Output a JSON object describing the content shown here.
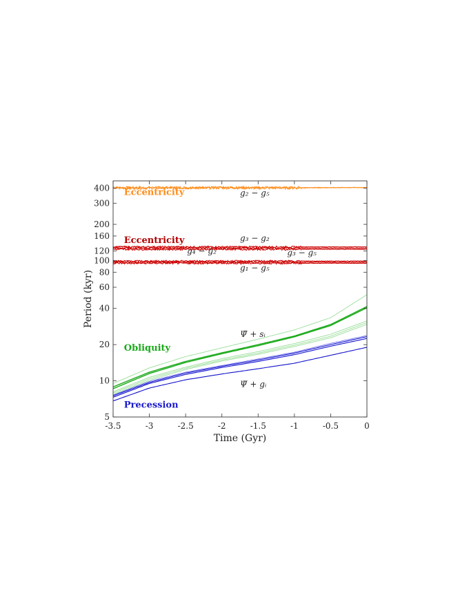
{
  "chart_data": {
    "type": "line",
    "xlabel": "Time (Gyr)",
    "ylabel": "Period (kyr)",
    "xlim": [
      -3.5,
      0
    ],
    "ylim": [
      5,
      460
    ],
    "yscale": "log",
    "x_ticks": [
      -3.5,
      -3,
      -2.5,
      -2,
      -1.5,
      -1,
      -0.5,
      0
    ],
    "x_tick_labels": [
      "-3.5",
      "-3",
      "-2.5",
      "-2",
      "-1.5",
      "-1",
      "-0.5",
      "0"
    ],
    "y_ticks": [
      5,
      10,
      20,
      40,
      60,
      80,
      100,
      120,
      160,
      200,
      300,
      400
    ],
    "y_tick_labels": [
      "5",
      "10",
      "20",
      "40",
      "60",
      "80",
      "100",
      "120",
      "160",
      "200",
      "300",
      "400"
    ],
    "grid": false,
    "colors": {
      "eccentricity_long": "#ff8c1a",
      "eccentricity_short": "#cc0000",
      "eccentricity_short_bright": "#ff2020",
      "obliquity": "#1aaa1a",
      "obliquity_light": "#99dd99",
      "precession": "#1010cc",
      "precession_light": "#6a6aee"
    },
    "band_labels": [
      {
        "text": "Eccentricity",
        "color": "#ff8c1a",
        "x": -3.35,
        "y": 370
      },
      {
        "text": "Eccentricity",
        "color": "#b00000",
        "x": -3.35,
        "y": 148
      },
      {
        "text": "Obliquity",
        "color": "#1aaa1a",
        "x": -3.35,
        "y": 18.8
      },
      {
        "text": "Precession",
        "color": "#1a1acc",
        "x": -3.35,
        "y": 6.3
      }
    ],
    "term_labels": [
      {
        "text": "g₂ − g₅",
        "x": -1.75,
        "y": 365
      },
      {
        "text": "g₃ − g₂",
        "x": -1.75,
        "y": 154
      },
      {
        "text": "g₄ − g₂",
        "x": -2.48,
        "y": 120
      },
      {
        "text": "g₃ − g₅",
        "x": -1.1,
        "y": 116
      },
      {
        "text": "g₁ − g₅",
        "x": -1.75,
        "y": 87
      },
      {
        "text": "Ψ̄ + sᵢ",
        "x": -1.75,
        "y": 24.5
      },
      {
        "text": "Ψ̄ + gᵢ",
        "x": -1.75,
        "y": 9.4
      }
    ],
    "series": [
      {
        "group": "eccentricity_long",
        "x": [
          -3.5,
          -3,
          -2.5,
          -2,
          -1.5,
          -1,
          -0.5,
          0
        ],
        "y": [
          405,
          405,
          405,
          405,
          405,
          405,
          405,
          405
        ],
        "noise": 8
      },
      {
        "group": "eccentricity_long",
        "x": [
          -3.5,
          -3,
          -2.5,
          -2,
          -1.5,
          -1,
          -0.5,
          0
        ],
        "y": [
          402,
          401,
          402,
          403,
          402,
          402,
          404,
          405
        ],
        "noise": 10
      },
      {
        "group": "eccentricity_short",
        "x": [
          -3.5,
          -3,
          -2.5,
          -2,
          -1.5,
          -1,
          -0.5,
          0
        ],
        "y": [
          130,
          130,
          130,
          130,
          130,
          130,
          130,
          130
        ],
        "noise": 2
      },
      {
        "group": "eccentricity_short",
        "x": [
          -3.5,
          -3,
          -2.5,
          -2,
          -1.5,
          -1,
          -0.5,
          0
        ],
        "y": [
          127,
          127,
          127,
          127,
          127,
          127,
          127,
          127
        ],
        "noise": 2
      },
      {
        "group": "eccentricity_short",
        "x": [
          -3.5,
          -3,
          -2.5,
          -2,
          -1.5,
          -1,
          -0.5,
          0
        ],
        "y": [
          124,
          124,
          124,
          124,
          124,
          124,
          124,
          124
        ],
        "noise": 2
      },
      {
        "group": "eccentricity_short",
        "x": [
          -3.5,
          -3,
          -2.5,
          -2,
          -1.5,
          -1,
          -0.5,
          0
        ],
        "y": [
          97,
          97,
          97,
          97,
          97,
          97,
          97,
          97
        ],
        "noise": 1.5
      },
      {
        "group": "eccentricity_short",
        "x": [
          -3.5,
          -3,
          -2.5,
          -2,
          -1.5,
          -1,
          -0.5,
          0
        ],
        "y": [
          95,
          95,
          95,
          95,
          95,
          95,
          95,
          95
        ],
        "noise": 1.5
      },
      {
        "group": "eccentricity_short",
        "x": [
          -3.5,
          -3,
          -2.5,
          -2,
          -1.5,
          -1,
          -0.5,
          0
        ],
        "y": [
          99,
          99,
          99,
          99,
          99,
          99,
          99,
          99
        ],
        "noise": 1.5
      },
      {
        "group": "obliquity",
        "x": [
          -3.5,
          -3,
          -2.5,
          -2,
          -1.5,
          -1,
          -0.5,
          0
        ],
        "y": [
          8.6,
          11.5,
          14.2,
          16.8,
          19.6,
          23.2,
          28.8,
          40.5
        ],
        "noise": 0
      },
      {
        "group": "obliquity",
        "x": [
          -3.5,
          -3,
          -2.5,
          -2,
          -1.5,
          -1,
          -0.5,
          0
        ],
        "y": [
          8.9,
          11.8,
          14.5,
          17.1,
          20.0,
          23.6,
          29.4,
          41.5
        ],
        "noise": 0
      },
      {
        "group": "obliquity_light",
        "x": [
          -3.5,
          -3,
          -2.5,
          -2,
          -1.5,
          -1,
          -0.5,
          0
        ],
        "y": [
          9.5,
          12.8,
          15.9,
          18.8,
          22.2,
          26.5,
          33.5,
          52
        ],
        "noise": 0
      },
      {
        "group": "obliquity_light",
        "x": [
          -3.5,
          -3,
          -2.5,
          -2,
          -1.5,
          -1,
          -0.5,
          0
        ],
        "y": [
          7.9,
          10.4,
          12.7,
          14.9,
          17.0,
          19.8,
          23.5,
          30.5
        ],
        "noise": 0
      },
      {
        "group": "obliquity_light",
        "x": [
          -3.5,
          -3,
          -2.5,
          -2,
          -1.5,
          -1,
          -0.5,
          0
        ],
        "y": [
          7.7,
          10.1,
          12.4,
          14.6,
          16.6,
          19.3,
          22.8,
          29.5
        ],
        "noise": 0
      },
      {
        "group": "obliquity_light",
        "x": [
          -3.5,
          -3,
          -2.5,
          -2,
          -1.5,
          -1,
          -0.5,
          0
        ],
        "y": [
          8.1,
          10.7,
          13.0,
          15.3,
          17.5,
          20.4,
          24.4,
          31.5
        ],
        "noise": 0
      },
      {
        "group": "precession",
        "x": [
          -3.5,
          -3,
          -2.5,
          -2,
          -1.5,
          -1,
          -0.5,
          0
        ],
        "y": [
          6.8,
          8.7,
          10.2,
          11.4,
          12.6,
          14.0,
          16.3,
          19.0
        ],
        "noise": 0
      },
      {
        "group": "precession",
        "x": [
          -3.5,
          -3,
          -2.5,
          -2,
          -1.5,
          -1,
          -0.5,
          0
        ],
        "y": [
          7.3,
          9.5,
          11.3,
          12.9,
          14.5,
          16.5,
          19.4,
          22.5
        ],
        "noise": 0
      },
      {
        "group": "precession",
        "x": [
          -3.5,
          -3,
          -2.5,
          -2,
          -1.5,
          -1,
          -0.5,
          0
        ],
        "y": [
          7.5,
          9.7,
          11.6,
          13.2,
          14.9,
          17.0,
          20.0,
          23.3
        ],
        "noise": 0
      },
      {
        "group": "precession_light",
        "x": [
          -3.5,
          -3,
          -2.5,
          -2,
          -1.5,
          -1,
          -0.5,
          0
        ],
        "y": [
          7.6,
          9.9,
          11.8,
          13.4,
          15.2,
          17.3,
          20.5,
          23.8
        ],
        "noise": 0
      }
    ]
  }
}
